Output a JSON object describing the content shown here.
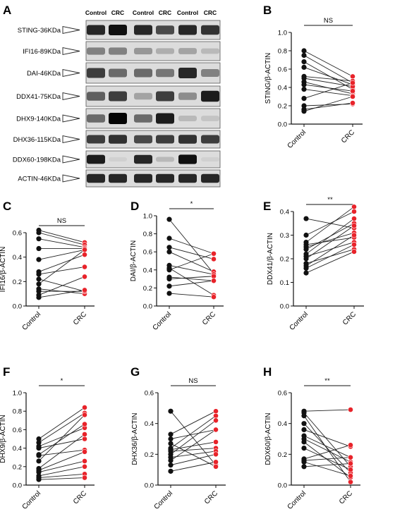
{
  "colors": {
    "control": "#111111",
    "crc": "#e8232a",
    "axis": "#111111"
  },
  "blot": {
    "panel_label": "A",
    "lanes": [
      "Control",
      "CRC",
      "Control",
      "CRC",
      "Control",
      "CRC"
    ],
    "bands": [
      {
        "label": "STING-36KDa",
        "intensity": [
          0.85,
          0.95,
          0.85,
          0.7,
          0.85,
          0.8
        ]
      },
      {
        "label": "IFI16-89KDa",
        "intensity": [
          0.45,
          0.45,
          0.35,
          0.25,
          0.3,
          0.2
        ]
      },
      {
        "label": "DAI-46KDa",
        "intensity": [
          0.75,
          0.55,
          0.55,
          0.5,
          0.85,
          0.45
        ]
      },
      {
        "label": "DDX41-75KDa",
        "intensity": [
          0.6,
          0.75,
          0.3,
          0.75,
          0.4,
          0.9
        ]
      },
      {
        "label": "DHX9-140KDa",
        "intensity": [
          0.55,
          1.0,
          0.55,
          0.9,
          0.2,
          0.15
        ]
      },
      {
        "label": "DHX36-115KDa",
        "intensity": [
          0.75,
          0.8,
          0.7,
          0.75,
          0.8,
          0.75
        ]
      },
      {
        "label": "DDX60-198KDa",
        "intensity": [
          0.9,
          0.1,
          0.85,
          0.2,
          0.95,
          0.1
        ]
      },
      {
        "label": "ACTIN-46KDa",
        "intensity": [
          0.85,
          0.85,
          0.85,
          0.85,
          0.85,
          0.85
        ]
      }
    ]
  },
  "chart_data": [
    {
      "panel": "B",
      "type": "scatter",
      "ylabel": "STING/β-ACTIN",
      "ylim": [
        0,
        1.0
      ],
      "yticks": [
        0.0,
        0.2,
        0.4,
        0.6,
        0.8,
        1.0
      ],
      "categories": [
        "Control",
        "CRC"
      ],
      "significance": "NS",
      "pairs": [
        [
          0.8,
          0.52
        ],
        [
          0.75,
          0.45
        ],
        [
          0.68,
          0.38
        ],
        [
          0.62,
          0.43
        ],
        [
          0.52,
          0.47
        ],
        [
          0.5,
          0.41
        ],
        [
          0.46,
          0.33
        ],
        [
          0.43,
          0.36
        ],
        [
          0.38,
          0.31
        ],
        [
          0.28,
          0.45
        ],
        [
          0.2,
          0.22
        ],
        [
          0.16,
          0.23
        ],
        [
          0.14,
          0.3
        ]
      ]
    },
    {
      "panel": "C",
      "type": "scatter",
      "ylabel": "IFI16/β-ACTIN",
      "ylim": [
        0,
        0.6
      ],
      "yticks": [
        0.0,
        0.2,
        0.4,
        0.6
      ],
      "categories": [
        "Control",
        "CRC"
      ],
      "significance": "NS",
      "pairs": [
        [
          0.62,
          0.52
        ],
        [
          0.6,
          0.5
        ],
        [
          0.55,
          0.48
        ],
        [
          0.47,
          0.47
        ],
        [
          0.38,
          0.46
        ],
        [
          0.28,
          0.42
        ],
        [
          0.26,
          0.32
        ],
        [
          0.22,
          0.12
        ],
        [
          0.18,
          0.46
        ],
        [
          0.14,
          0.1
        ],
        [
          0.12,
          0.12
        ],
        [
          0.09,
          0.24
        ],
        [
          0.07,
          0.13
        ]
      ]
    },
    {
      "panel": "D",
      "type": "scatter",
      "ylabel": "DAI/β-ACTIN",
      "ylim": [
        0,
        1.0
      ],
      "yticks": [
        0.0,
        0.2,
        0.4,
        0.6,
        0.8,
        1.0
      ],
      "categories": [
        "Control",
        "CRC"
      ],
      "significance": "*",
      "pairs": [
        [
          0.96,
          0.36
        ],
        [
          0.75,
          0.58
        ],
        [
          0.65,
          0.52
        ],
        [
          0.6,
          0.38
        ],
        [
          0.45,
          0.35
        ],
        [
          0.42,
          0.12
        ],
        [
          0.4,
          0.58
        ],
        [
          0.32,
          0.28
        ],
        [
          0.3,
          0.33
        ],
        [
          0.22,
          0.28
        ],
        [
          0.14,
          0.1
        ]
      ]
    },
    {
      "panel": "E",
      "type": "scatter",
      "ylabel": "DDX41/β-ACTIN",
      "ylim": [
        0,
        0.4
      ],
      "yticks": [
        0.0,
        0.1,
        0.2,
        0.3,
        0.4
      ],
      "categories": [
        "Control",
        "CRC"
      ],
      "significance": "**",
      "pairs": [
        [
          0.37,
          0.33
        ],
        [
          0.3,
          0.4
        ],
        [
          0.27,
          0.42
        ],
        [
          0.26,
          0.29
        ],
        [
          0.25,
          0.31
        ],
        [
          0.24,
          0.35
        ],
        [
          0.22,
          0.37
        ],
        [
          0.21,
          0.27
        ],
        [
          0.2,
          0.34
        ],
        [
          0.18,
          0.24
        ],
        [
          0.17,
          0.3
        ],
        [
          0.16,
          0.26
        ],
        [
          0.14,
          0.23
        ]
      ]
    },
    {
      "panel": "F",
      "type": "scatter",
      "ylabel": "DHX9/β-ACTIN",
      "ylim": [
        0,
        1.0
      ],
      "yticks": [
        0.0,
        0.2,
        0.4,
        0.6,
        0.8,
        1.0
      ],
      "categories": [
        "Control",
        "CRC"
      ],
      "significance": "*",
      "pairs": [
        [
          0.5,
          0.84
        ],
        [
          0.46,
          0.78
        ],
        [
          0.42,
          0.62
        ],
        [
          0.4,
          0.5
        ],
        [
          0.33,
          0.66
        ],
        [
          0.32,
          0.38
        ],
        [
          0.26,
          0.76
        ],
        [
          0.18,
          0.55
        ],
        [
          0.16,
          0.36
        ],
        [
          0.14,
          0.26
        ],
        [
          0.1,
          0.2
        ],
        [
          0.08,
          0.12
        ],
        [
          0.06,
          0.08
        ]
      ]
    },
    {
      "panel": "G",
      "type": "scatter",
      "ylabel": "DHX36/β-ACTIN",
      "ylim": [
        0,
        0.6
      ],
      "yticks": [
        0.0,
        0.2,
        0.4,
        0.6
      ],
      "categories": [
        "Control",
        "CRC"
      ],
      "significance": "NS",
      "pairs": [
        [
          0.48,
          0.13
        ],
        [
          0.33,
          0.48
        ],
        [
          0.3,
          0.36
        ],
        [
          0.27,
          0.12
        ],
        [
          0.24,
          0.45
        ],
        [
          0.23,
          0.28
        ],
        [
          0.22,
          0.24
        ],
        [
          0.2,
          0.42
        ],
        [
          0.18,
          0.22
        ],
        [
          0.16,
          0.36
        ],
        [
          0.13,
          0.2
        ],
        [
          0.09,
          0.15
        ]
      ]
    },
    {
      "panel": "H",
      "type": "scatter",
      "ylabel": "DDX60/β-ACTIN",
      "ylim": [
        0,
        0.6
      ],
      "yticks": [
        0.0,
        0.2,
        0.4,
        0.6
      ],
      "categories": [
        "Control",
        "CRC"
      ],
      "significance": "**",
      "pairs": [
        [
          0.48,
          0.49
        ],
        [
          0.47,
          0.12
        ],
        [
          0.45,
          0.02
        ],
        [
          0.4,
          0.08
        ],
        [
          0.36,
          0.25
        ],
        [
          0.32,
          0.18
        ],
        [
          0.3,
          0.15
        ],
        [
          0.28,
          0.05
        ],
        [
          0.24,
          0.1
        ],
        [
          0.17,
          0.26
        ],
        [
          0.16,
          0.18
        ],
        [
          0.15,
          0.06
        ],
        [
          0.12,
          0.14
        ]
      ]
    }
  ]
}
